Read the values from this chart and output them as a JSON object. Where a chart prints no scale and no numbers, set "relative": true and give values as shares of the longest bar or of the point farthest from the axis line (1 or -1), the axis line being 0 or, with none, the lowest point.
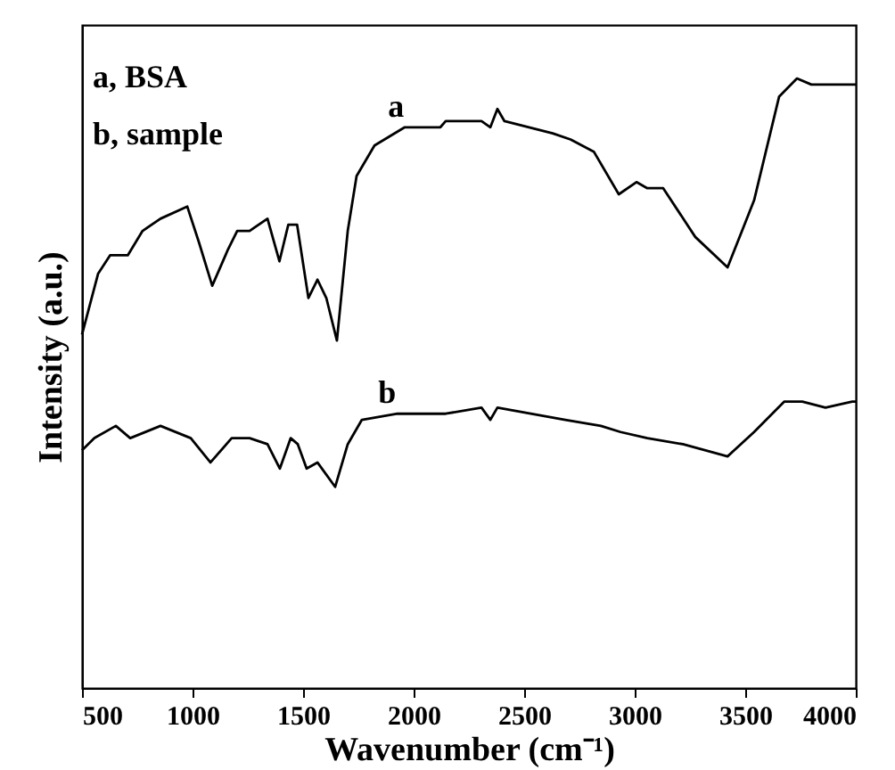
{
  "chart_data": {
    "type": "line",
    "relative": true,
    "xlabel": "Wavenumber (cm⁻¹)",
    "ylabel": "Intensity (a.u.)",
    "xlim": [
      500,
      4000
    ],
    "xticks": [
      500,
      1000,
      1500,
      2000,
      2500,
      3000,
      3500,
      4000
    ],
    "tick_labels": "x",
    "grid": false,
    "marker": "none",
    "line_style": "solid",
    "annotations": [
      "a, BSA",
      "b, sample",
      {
        "text": "a",
        "x": 1920,
        "y": 0.92
      },
      {
        "text": "b",
        "x": 1880,
        "y": 0.45
      }
    ],
    "series": [
      {
        "color": "#000000",
        "x": [
          500,
          573,
          627,
          707,
          774,
          855,
          976,
          1030,
          1089,
          1161,
          1202,
          1258,
          1339,
          1393,
          1433,
          1473,
          1524,
          1565,
          1605,
          1653,
          1702,
          1742,
          1823,
          1960,
          2121,
          2145,
          2307,
          2347,
          2379,
          2411,
          2629,
          2710,
          2815,
          2928,
          3008,
          3057,
          3129,
          3274,
          3420,
          3540,
          3653,
          3734,
          3799,
          3984,
          4000
        ],
        "values": [
          0.58,
          0.68,
          0.71,
          0.71,
          0.75,
          0.77,
          0.79,
          0.73,
          0.66,
          0.72,
          0.75,
          0.75,
          0.77,
          0.7,
          0.76,
          0.76,
          0.64,
          0.67,
          0.64,
          0.57,
          0.75,
          0.84,
          0.89,
          0.92,
          0.92,
          0.93,
          0.93,
          0.92,
          0.95,
          0.93,
          0.91,
          0.9,
          0.88,
          0.81,
          0.83,
          0.82,
          0.82,
          0.74,
          0.69,
          0.8,
          0.97,
          1.0,
          0.99,
          0.99,
          0.99
        ]
      },
      {
        "color": "#000000",
        "x": [
          500,
          556,
          653,
          718,
          855,
          992,
          1081,
          1177,
          1258,
          1339,
          1395,
          1444,
          1476,
          1516,
          1565,
          1645,
          1702,
          1766,
          1927,
          2145,
          2307,
          2347,
          2379,
          2686,
          2847,
          2936,
          3057,
          3218,
          3420,
          3540,
          3677,
          3758,
          3863,
          3984,
          4000
        ],
        "values": [
          0.39,
          0.41,
          0.43,
          0.41,
          0.43,
          0.41,
          0.37,
          0.41,
          0.41,
          0.4,
          0.36,
          0.41,
          0.4,
          0.36,
          0.37,
          0.33,
          0.4,
          0.44,
          0.45,
          0.45,
          0.46,
          0.44,
          0.46,
          0.44,
          0.43,
          0.42,
          0.41,
          0.4,
          0.38,
          0.42,
          0.47,
          0.47,
          0.46,
          0.47,
          0.47
        ]
      }
    ]
  }
}
